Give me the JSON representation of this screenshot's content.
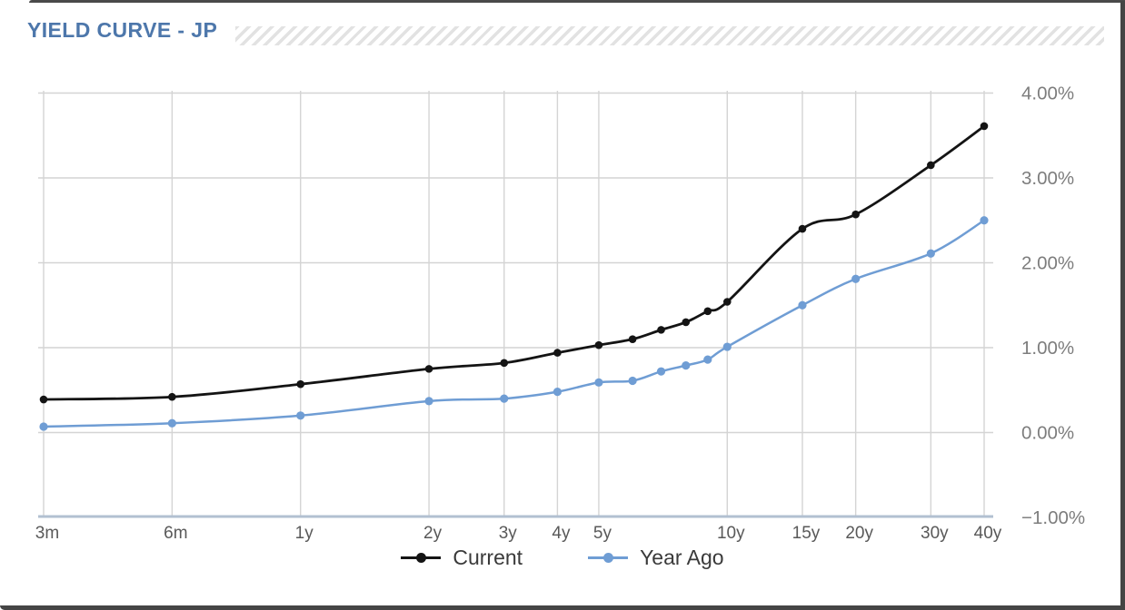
{
  "header": {
    "title": "YIELD CURVE - JP"
  },
  "colors": {
    "title": "#4d77ab",
    "current_series": "#141414",
    "year_ago_series": "#6f9dd4",
    "gridline": "#d4d4d4",
    "axis_line": "#b2c0d1",
    "x_label": "#595959",
    "y_label": "#7d7d7d",
    "legend_text": "#3a3a3a",
    "hatch_stripe": "#e2e2e2",
    "frame": "#454545"
  },
  "chart_data": {
    "type": "line",
    "title": "YIELD CURVE - JP",
    "x_scale": "log",
    "xlabel": "",
    "ylabel": "",
    "ylim": [
      -1,
      4
    ],
    "grid": true,
    "legend_position": "bottom",
    "unit": "percent",
    "categories": [
      "3m",
      "6m",
      "1y",
      "2y",
      "3y",
      "4y",
      "5y",
      "6y",
      "7y",
      "8y",
      "9y",
      "10y",
      "15y",
      "20y",
      "30y",
      "40y"
    ],
    "maturities_years": [
      0.25,
      0.5,
      1,
      2,
      3,
      4,
      5,
      6,
      7,
      8,
      9,
      10,
      15,
      20,
      30,
      40
    ],
    "series": [
      {
        "name": "Current",
        "color": "#141414",
        "values": [
          0.39,
          0.42,
          0.57,
          0.75,
          0.82,
          0.94,
          1.03,
          1.1,
          1.21,
          1.3,
          1.43,
          1.54,
          2.4,
          2.57,
          3.15,
          3.61
        ]
      },
      {
        "name": "Year Ago",
        "color": "#6f9dd4",
        "values": [
          0.07,
          0.11,
          0.2,
          0.37,
          0.4,
          0.48,
          0.59,
          0.61,
          0.72,
          0.79,
          0.86,
          1.01,
          1.5,
          1.81,
          2.11,
          2.5
        ]
      }
    ],
    "x_ticks": [
      {
        "label": "3m",
        "years": 0.25
      },
      {
        "label": "6m",
        "years": 0.5
      },
      {
        "label": "1y",
        "years": 1
      },
      {
        "label": "2y",
        "years": 2
      },
      {
        "label": "3y",
        "years": 3
      },
      {
        "label": "4y",
        "years": 4
      },
      {
        "label": "5y",
        "years": 5
      },
      {
        "label": "10y",
        "years": 10
      },
      {
        "label": "15y",
        "years": 15
      },
      {
        "label": "20y",
        "years": 20
      },
      {
        "label": "30y",
        "years": 30
      },
      {
        "label": "40y",
        "years": 40
      }
    ],
    "y_ticks": [
      {
        "label": "4.00%",
        "value": 4
      },
      {
        "label": "3.00%",
        "value": 3
      },
      {
        "label": "2.00%",
        "value": 2
      },
      {
        "label": "1.00%",
        "value": 1
      },
      {
        "label": "0.00%",
        "value": 0
      },
      {
        "label": "−1.00%",
        "value": -1
      }
    ]
  },
  "legend": {
    "items": [
      {
        "label": "Current"
      },
      {
        "label": "Year Ago"
      }
    ]
  }
}
